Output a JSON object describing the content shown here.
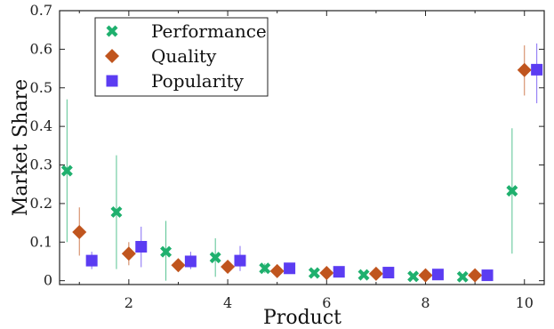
{
  "chart_data": {
    "type": "scatter",
    "xlabel": "Product",
    "ylabel": "Market Share",
    "xlim": [
      0.6,
      10.4
    ],
    "ylim": [
      -0.01,
      0.7
    ],
    "xticks": [
      2,
      4,
      6,
      8,
      10
    ],
    "yticks": [
      0,
      0.1,
      0.2,
      0.3,
      0.4,
      0.5,
      0.6,
      0.7
    ],
    "ytick_labels": [
      "0",
      "0.1",
      "0.2",
      "0.3",
      "0.4",
      "0.5",
      "0.6",
      "0.7"
    ],
    "x": [
      1,
      2,
      3,
      4,
      5,
      6,
      7,
      8,
      9,
      10
    ],
    "grid": false,
    "legend_position": "top-left",
    "series": [
      {
        "name": "Performance",
        "marker": "x",
        "color": "#1fb06e",
        "offset": -0.25,
        "values": [
          0.285,
          0.178,
          0.075,
          0.06,
          0.032,
          0.02,
          0.015,
          0.011,
          0.01,
          0.233
        ],
        "err_low": [
          0.1,
          0.03,
          0.0,
          0.01,
          0.02,
          0.012,
          0.009,
          0.006,
          0.005,
          0.07
        ],
        "err_high": [
          0.47,
          0.325,
          0.155,
          0.11,
          0.045,
          0.028,
          0.022,
          0.016,
          0.015,
          0.395
        ]
      },
      {
        "name": "Quality",
        "marker": "diamond",
        "color": "#c0551e",
        "offset": 0.0,
        "values": [
          0.126,
          0.07,
          0.04,
          0.036,
          0.025,
          0.02,
          0.018,
          0.014,
          0.014,
          0.546
        ],
        "err_low": [
          0.065,
          0.04,
          0.025,
          0.02,
          0.018,
          0.014,
          0.012,
          0.009,
          0.009,
          0.48
        ],
        "err_high": [
          0.19,
          0.1,
          0.055,
          0.052,
          0.032,
          0.026,
          0.024,
          0.019,
          0.019,
          0.61
        ]
      },
      {
        "name": "Popularity",
        "marker": "square",
        "color": "#5b3cf2",
        "offset": 0.25,
        "values": [
          0.052,
          0.088,
          0.05,
          0.052,
          0.032,
          0.023,
          0.021,
          0.016,
          0.014,
          0.547
        ],
        "err_low": [
          0.03,
          0.035,
          0.03,
          0.025,
          0.02,
          0.016,
          0.015,
          0.011,
          0.01,
          0.46
        ],
        "err_high": [
          0.075,
          0.14,
          0.075,
          0.09,
          0.045,
          0.03,
          0.028,
          0.021,
          0.018,
          0.615
        ]
      }
    ]
  }
}
